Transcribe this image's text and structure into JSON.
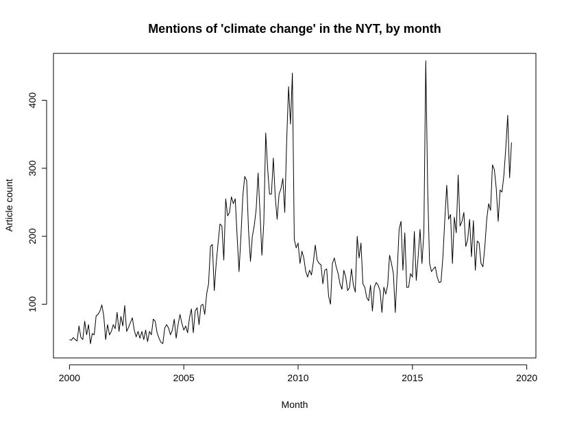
{
  "chart_data": {
    "type": "line",
    "title": "Mentions of 'climate change' in the NYT, by month",
    "xlabel": "Month",
    "ylabel": "Article count",
    "xlim": [
      1999.3,
      2020.4
    ],
    "ylim": [
      21,
      469
    ],
    "x_ticks": [
      2000,
      2005,
      2010,
      2015,
      2020
    ],
    "y_ticks": [
      100,
      200,
      300,
      400
    ],
    "grid": false,
    "legend": "none",
    "line_color": "#000000",
    "x_start": "2000-01",
    "series": [
      {
        "values": [
          48,
          47,
          51,
          48,
          46,
          68,
          51,
          48,
          75,
          55,
          70,
          42,
          57,
          55,
          83,
          85,
          90,
          99,
          83,
          48,
          70,
          55,
          60,
          70,
          64,
          88,
          60,
          82,
          68,
          98,
          60,
          66,
          73,
          80,
          62,
          52,
          60,
          50,
          60,
          48,
          62,
          45,
          60,
          55,
          78,
          75,
          58,
          50,
          44,
          42,
          65,
          70,
          65,
          55,
          62,
          78,
          50,
          70,
          85,
          72,
          62,
          68,
          58,
          80,
          93,
          58,
          90,
          95,
          70,
          98,
          100,
          85,
          115,
          130,
          185,
          188,
          120,
          160,
          190,
          218,
          215,
          165,
          255,
          230,
          235,
          258,
          248,
          255,
          200,
          148,
          200,
          260,
          288,
          282,
          208,
          163,
          200,
          216,
          240,
          293,
          235,
          172,
          220,
          352,
          300,
          262,
          262,
          315,
          258,
          225,
          262,
          270,
          285,
          235,
          340,
          420,
          365,
          440,
          195,
          183,
          190,
          160,
          178,
          168,
          148,
          140,
          150,
          143,
          162,
          187,
          165,
          160,
          158,
          130,
          150,
          152,
          112,
          100,
          160,
          168,
          155,
          145,
          130,
          122,
          150,
          140,
          120,
          125,
          152,
          128,
          118,
          200,
          168,
          190,
          130,
          125,
          110,
          105,
          128,
          90,
          125,
          132,
          128,
          120,
          88,
          125,
          115,
          128,
          172,
          160,
          145,
          88,
          148,
          210,
          222,
          150,
          205,
          125,
          125,
          145,
          140,
          207,
          135,
          170,
          210,
          160,
          205,
          458,
          270,
          160,
          148,
          152,
          155,
          140,
          132,
          133,
          170,
          225,
          275,
          225,
          232,
          160,
          228,
          205,
          290,
          215,
          222,
          235,
          185,
          195,
          225,
          170,
          223,
          150,
          193,
          190,
          160,
          155,
          185,
          225,
          248,
          238,
          305,
          298,
          270,
          222,
          268,
          265,
          290,
          330,
          378,
          286,
          338
        ]
      }
    ]
  }
}
